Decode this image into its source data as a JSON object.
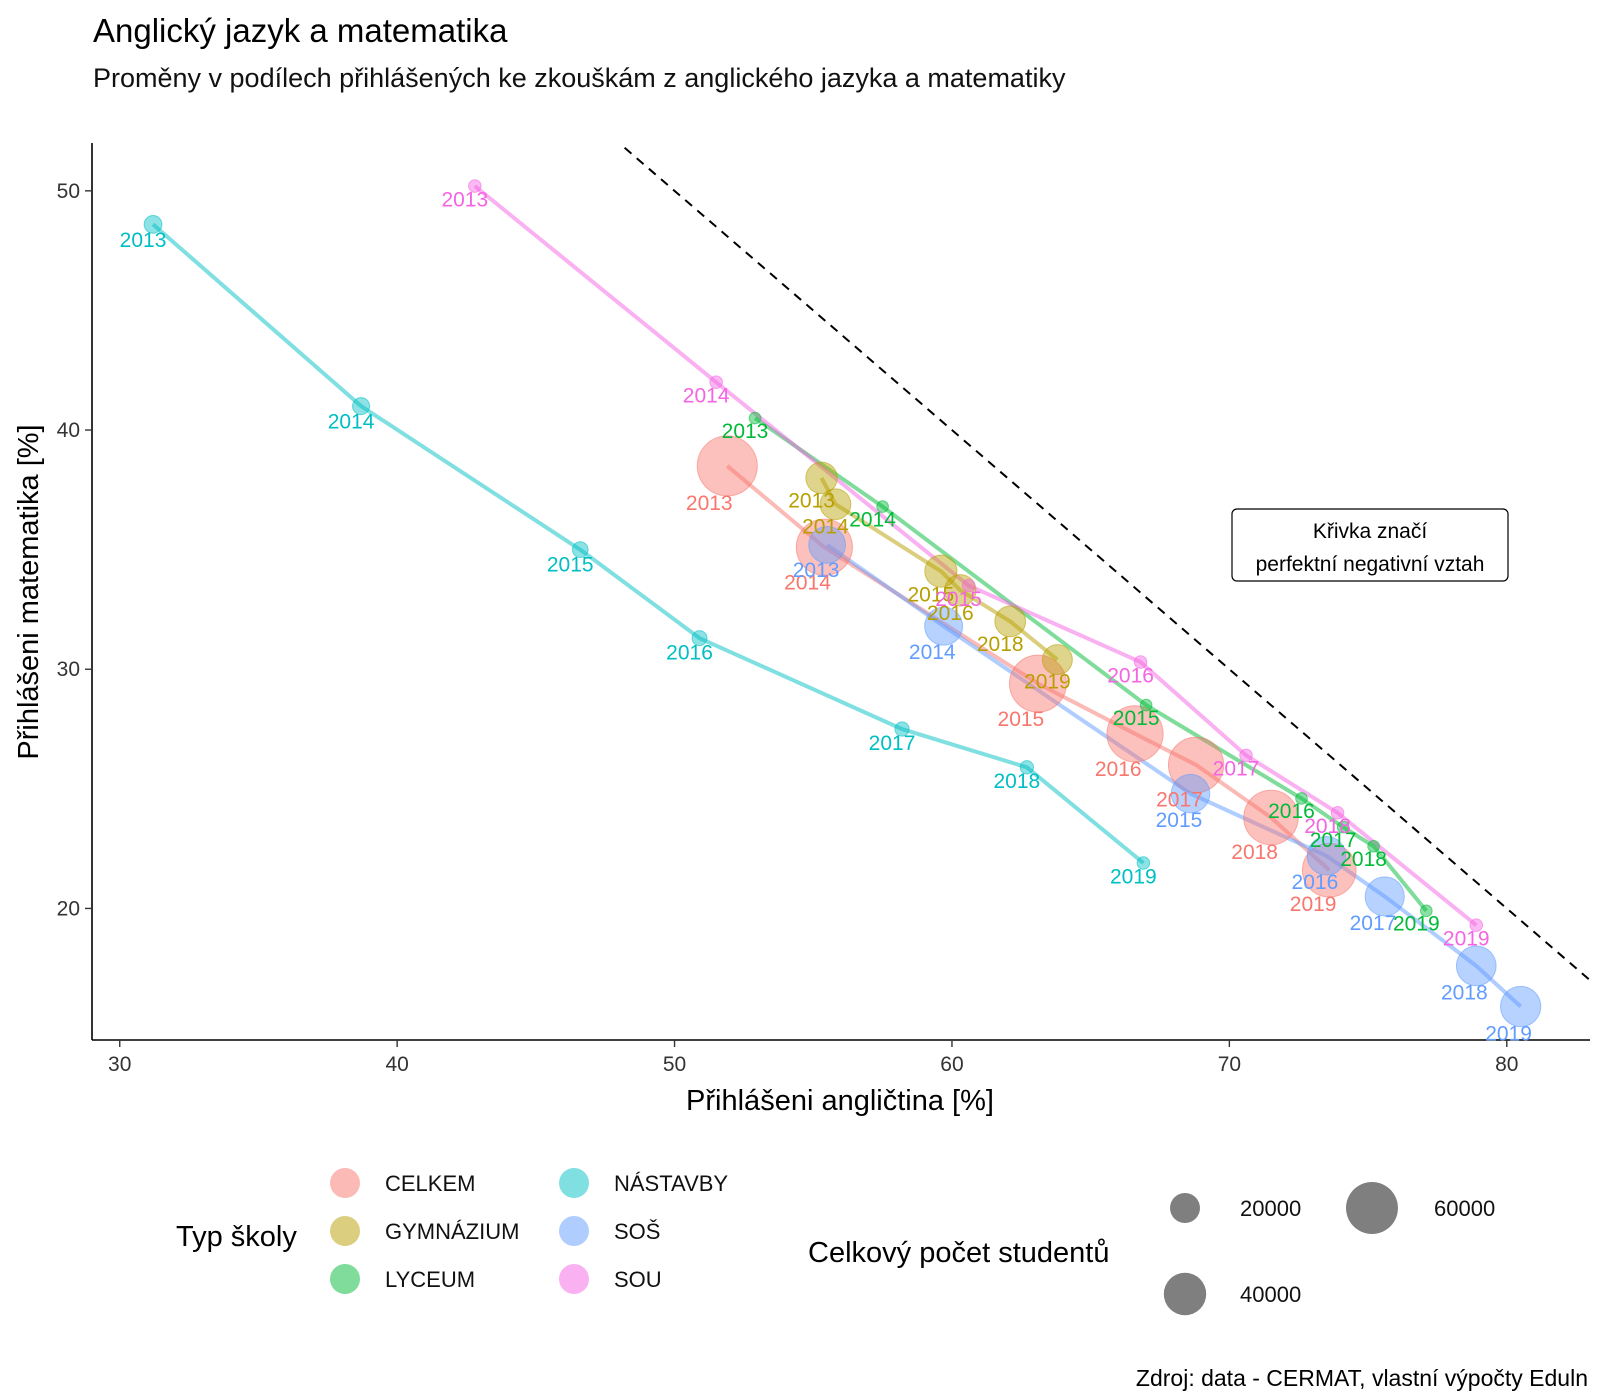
{
  "chart_data": {
    "type": "scatter",
    "title": "Anglický jazyk a matematika",
    "subtitle": "Proměny v podílech přihlášených ke zkouškám z anglického jazyka a matematiky",
    "xlabel": "Přihlášeni angličtina [%]",
    "ylabel": "Přihlášeni matematika [%]",
    "xlim": [
      29,
      83
    ],
    "ylim": [
      14.5,
      52
    ],
    "xticks": [
      30,
      40,
      50,
      60,
      70,
      80
    ],
    "yticks": [
      20,
      30,
      40,
      50
    ],
    "grid": false,
    "reference_line": {
      "style": "dashed",
      "points": [
        [
          48.2,
          51.8
        ],
        [
          83,
          17
        ]
      ]
    },
    "annotation": "Křivka značí\nperfektní negativní vztah",
    "caption": "Zdroj: data - CERMAT, vlastní výpočty Eduln",
    "series": [
      {
        "name": "CELKEM",
        "color": "#F8766D",
        "points": [
          {
            "label": "2013",
            "x": 51.9,
            "y": 38.5,
            "size": 80000
          },
          {
            "label": "2014",
            "x": 55.4,
            "y": 35.1,
            "size": 70000
          },
          {
            "label": "2015",
            "x": 63.1,
            "y": 29.4,
            "size": 72000
          },
          {
            "label": "2016",
            "x": 66.6,
            "y": 27.3,
            "size": 70000
          },
          {
            "label": "2017",
            "x": 68.8,
            "y": 26.0,
            "size": 68000
          },
          {
            "label": "2018",
            "x": 71.5,
            "y": 23.8,
            "size": 66000
          },
          {
            "label": "2019",
            "x": 73.6,
            "y": 21.6,
            "size": 64000
          }
        ]
      },
      {
        "name": "GYMNÁZIUM",
        "color": "#B79F00",
        "points": [
          {
            "label": "2013",
            "x": 55.3,
            "y": 38.0,
            "size": 22000
          },
          {
            "label": "2014",
            "x": 55.8,
            "y": 36.9,
            "size": 21000
          },
          {
            "label": "2015",
            "x": 59.6,
            "y": 34.1,
            "size": 23000
          },
          {
            "label": "2016",
            "x": 60.3,
            "y": 33.3,
            "size": 22000
          },
          {
            "label": "2018",
            "x": 62.1,
            "y": 32.0,
            "size": 21000
          },
          {
            "label": "2019",
            "x": 63.8,
            "y": 30.4,
            "size": 20000
          }
        ]
      },
      {
        "name": "LYCEUM",
        "color": "#00BA38",
        "points": [
          {
            "label": "2013",
            "x": 52.9,
            "y": 40.5,
            "size": 3000
          },
          {
            "label": "2014",
            "x": 57.5,
            "y": 36.8,
            "size": 3000
          },
          {
            "label": "2015",
            "x": 67.0,
            "y": 28.5,
            "size": 3000
          },
          {
            "label": "2016",
            "x": 72.6,
            "y": 24.6,
            "size": 3000
          },
          {
            "label": "2017",
            "x": 74.1,
            "y": 23.4,
            "size": 3000
          },
          {
            "label": "2018",
            "x": 75.2,
            "y": 22.6,
            "size": 3000
          },
          {
            "label": "2019",
            "x": 77.1,
            "y": 19.9,
            "size": 3000
          }
        ]
      },
      {
        "name": "NÁSTAVBY",
        "color": "#00BFC4",
        "points": [
          {
            "label": "2013",
            "x": 31.2,
            "y": 48.6,
            "size": 7000
          },
          {
            "label": "2014",
            "x": 38.7,
            "y": 41.0,
            "size": 6500
          },
          {
            "label": "2015",
            "x": 46.6,
            "y": 35.0,
            "size": 5500
          },
          {
            "label": "2016",
            "x": 50.9,
            "y": 31.3,
            "size": 5000
          },
          {
            "label": "2017",
            "x": 58.2,
            "y": 27.5,
            "size": 4500
          },
          {
            "label": "2018",
            "x": 62.7,
            "y": 25.9,
            "size": 4000
          },
          {
            "label": "2019",
            "x": 66.9,
            "y": 21.9,
            "size": 3500
          }
        ]
      },
      {
        "name": "SOŠ",
        "color": "#619CFF",
        "points": [
          {
            "label": "2013",
            "x": 55.5,
            "y": 35.2,
            "size": 30000
          },
          {
            "label": "2014",
            "x": 59.7,
            "y": 31.8,
            "size": 32000
          },
          {
            "label": "2015",
            "x": 68.6,
            "y": 24.8,
            "size": 33000
          },
          {
            "label": "2016",
            "x": 73.5,
            "y": 22.2,
            "size": 33000
          },
          {
            "label": "2017",
            "x": 75.6,
            "y": 20.5,
            "size": 34000
          },
          {
            "label": "2018",
            "x": 78.9,
            "y": 17.6,
            "size": 35000
          },
          {
            "label": "2019",
            "x": 80.5,
            "y": 15.9,
            "size": 36000
          }
        ]
      },
      {
        "name": "SOU",
        "color": "#F564E3",
        "points": [
          {
            "label": "2013",
            "x": 42.8,
            "y": 50.2,
            "size": 3500
          },
          {
            "label": "2014",
            "x": 51.5,
            "y": 42.0,
            "size": 3500
          },
          {
            "label": "2015",
            "x": 60.6,
            "y": 33.5,
            "size": 3500
          },
          {
            "label": "2016",
            "x": 66.8,
            "y": 30.3,
            "size": 3500
          },
          {
            "label": "2017",
            "x": 70.6,
            "y": 26.4,
            "size": 3500
          },
          {
            "label": "2018",
            "x": 73.9,
            "y": 24.0,
            "size": 3500
          },
          {
            "label": "2019",
            "x": 78.9,
            "y": 19.3,
            "size": 3500
          }
        ]
      }
    ],
    "legend_color": {
      "title": "Typ školy",
      "entries": [
        "CELKEM",
        "GYMNÁZIUM",
        "LYCEUM",
        "NÁSTAVBY",
        "SOŠ",
        "SOU"
      ]
    },
    "legend_size": {
      "title": "Celkový počet studentů",
      "values": [
        20000,
        40000,
        60000
      ],
      "labels": [
        "20000",
        "40000",
        "60000"
      ]
    }
  }
}
